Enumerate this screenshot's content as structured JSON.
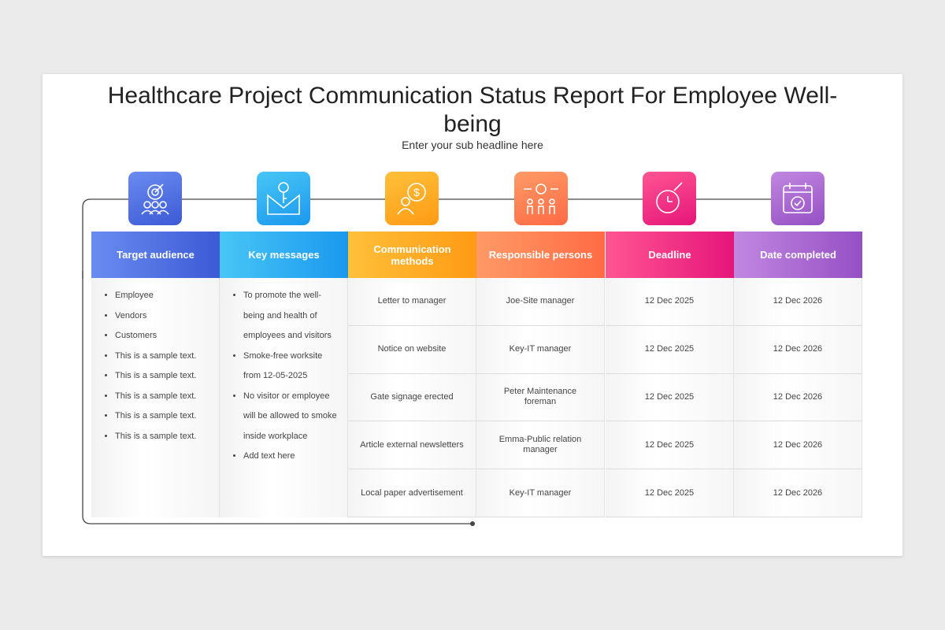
{
  "header": {
    "title": "Healthcare Project Communication Status Report For Employee Well-being",
    "subtitle": "Enter your sub headline here"
  },
  "table": {
    "columns": [
      "Target audience",
      "Key messages",
      "Communication methods",
      "Responsible persons",
      "Deadline",
      "Date completed"
    ],
    "audience": [
      "Employee",
      "Vendors",
      "Customers",
      "This is a sample text.",
      "This is a sample text.",
      "This is a sample text.",
      "This is a sample text.",
      "This is a sample text."
    ],
    "messages": [
      "To promote the well-being and health of employees and visitors",
      "Smoke-free worksite from 12-05-2025",
      "No visitor or employee will be allowed to smoke inside workplace",
      "Add text here"
    ],
    "rows": [
      [
        "Letter to manager",
        "Joe-Site manager",
        "12 Dec 2025",
        "12 Dec 2026"
      ],
      [
        "Notice on website",
        "Key-IT manager",
        "12 Dec 2025",
        "12 Dec 2026"
      ],
      [
        "Gate signage erected",
        "Peter Maintenance foreman",
        "12 Dec 2025",
        "12 Dec 2026"
      ],
      [
        "Article external newsletters",
        "Emma-Public relation manager",
        "12 Dec 2025",
        "12 Dec 2026"
      ],
      [
        "Local paper advertisement",
        "Key-IT manager",
        "12 Dec 2025",
        "12 Dec 2026"
      ]
    ]
  }
}
